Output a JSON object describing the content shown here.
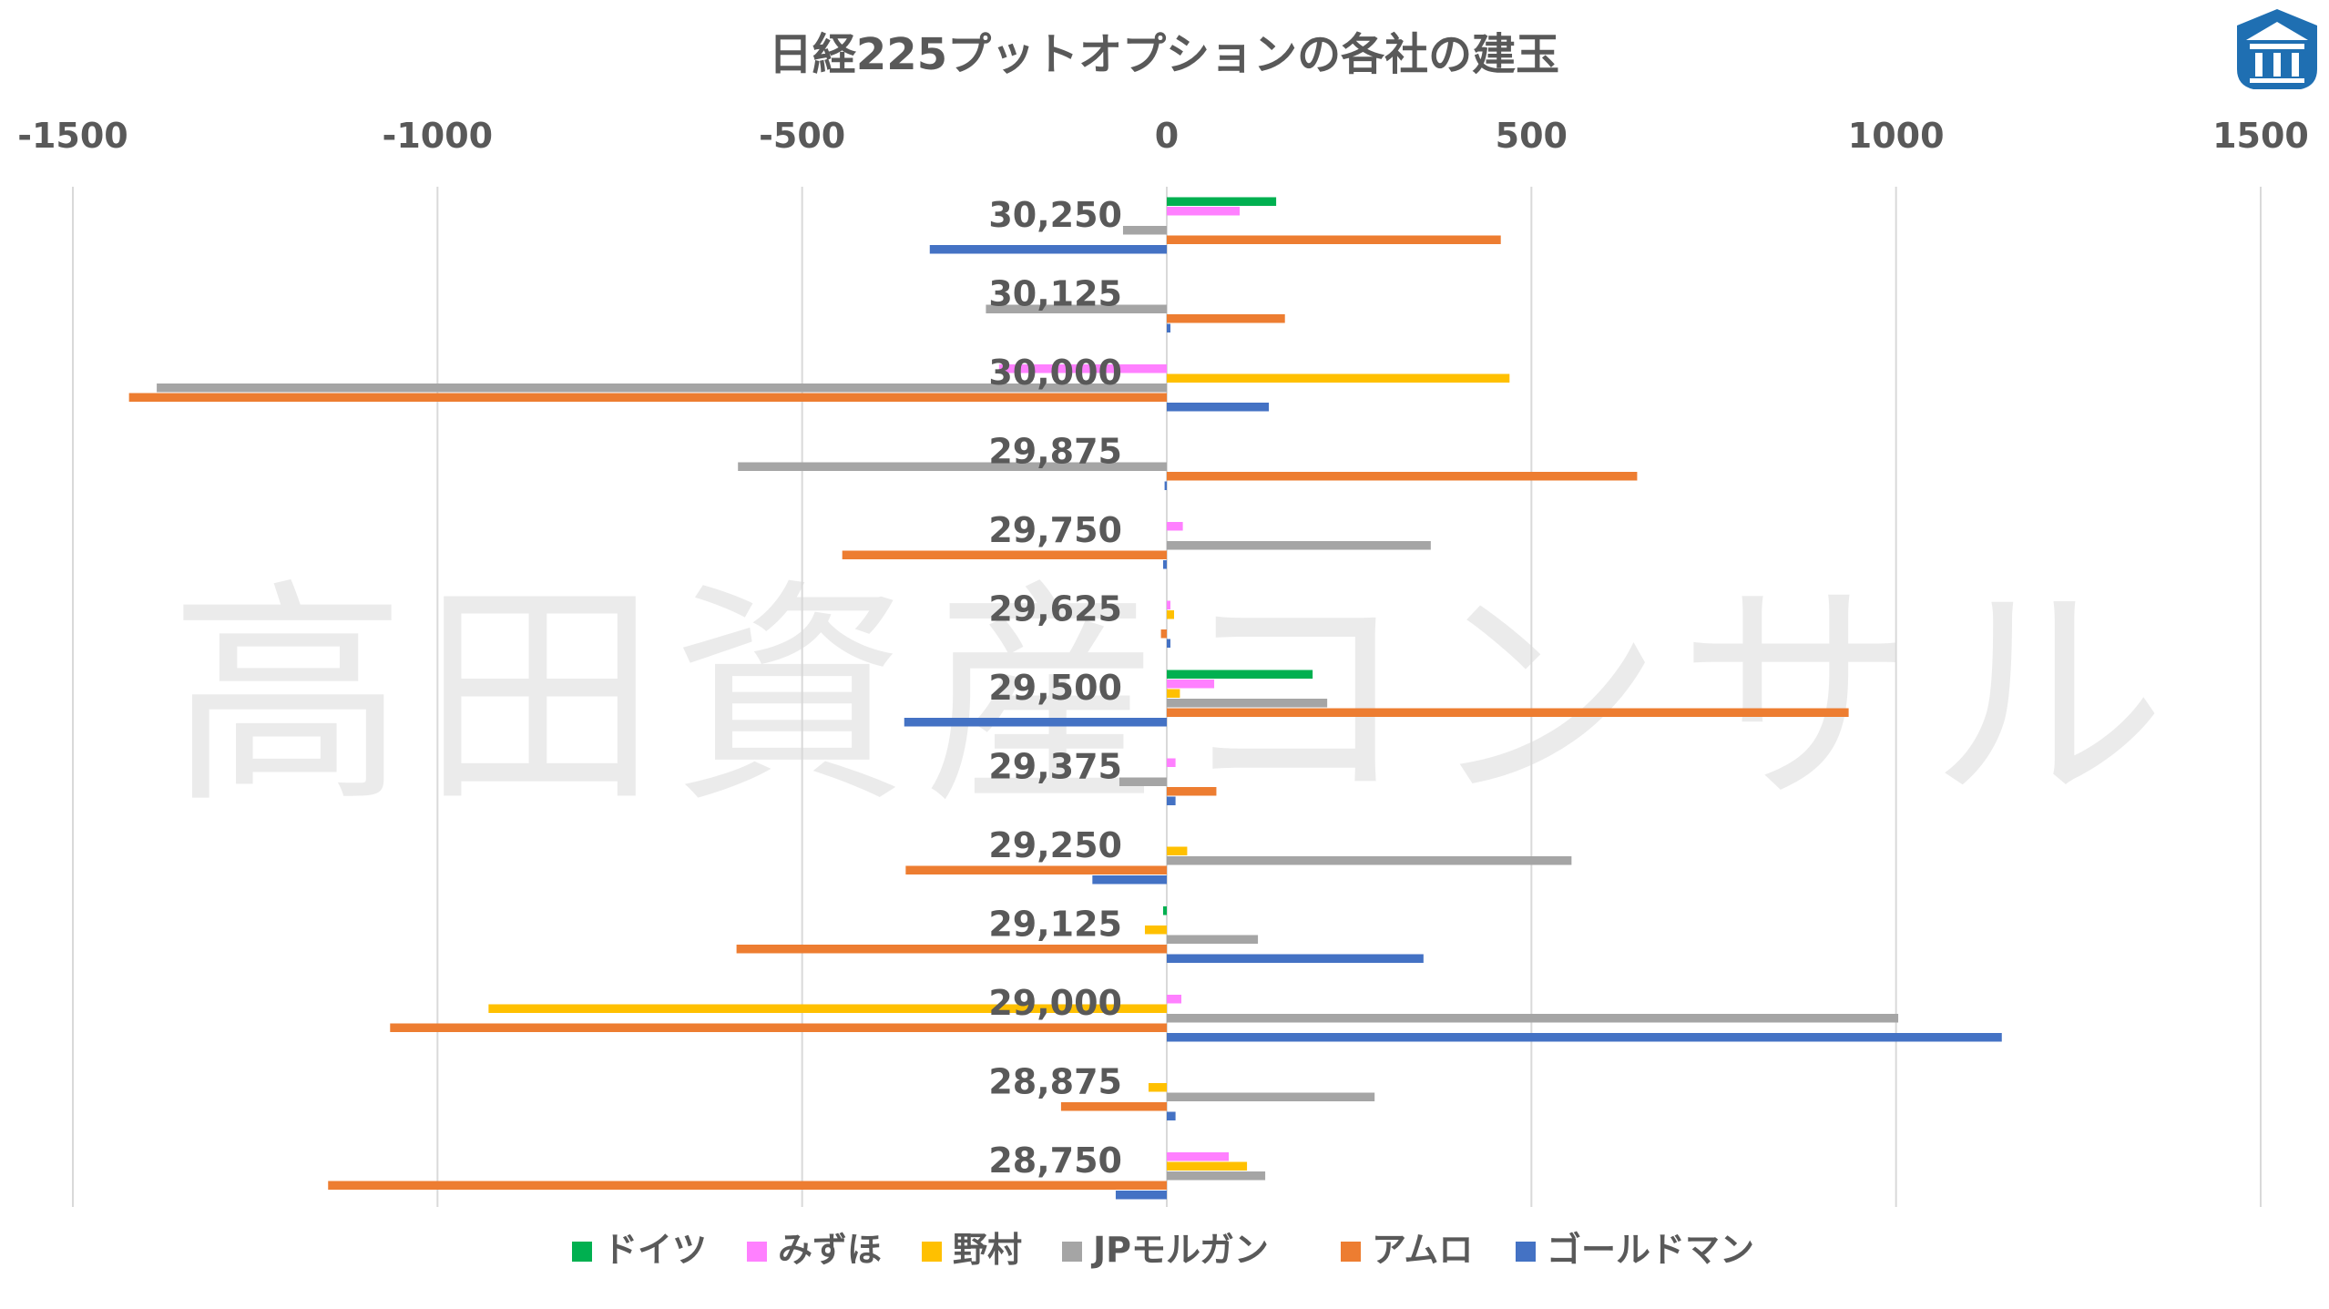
{
  "chart_data": {
    "type": "bar",
    "orientation": "horizontal",
    "title": "日経225プットオプションの各社の建玉",
    "xlim": [
      -1500,
      1500
    ],
    "x_ticks": [
      "-1500",
      "-1000",
      "-500",
      "0",
      "500",
      "1000",
      "1500"
    ],
    "x_tick_values": [
      -1500,
      -1000,
      -500,
      0,
      500,
      1000,
      1500
    ],
    "grid": true,
    "legend_position": "bottom",
    "categories": [
      "30,250",
      "30,125",
      "30,000",
      "29,875",
      "29,750",
      "29,625",
      "29,500",
      "29,375",
      "29,250",
      "29,125",
      "29,000",
      "28,875",
      "28,750"
    ],
    "series": [
      {
        "name": "ドイツ",
        "color": "#00b050",
        "values": [
          150,
          0,
          0,
          0,
          0,
          0,
          200,
          0,
          0,
          -5,
          0,
          0,
          0
        ]
      },
      {
        "name": "みずほ",
        "color": "#ff80ff",
        "values": [
          100,
          0,
          -230,
          0,
          22,
          5,
          65,
          12,
          0,
          0,
          20,
          0,
          85
        ]
      },
      {
        "name": "野村",
        "color": "#ffc000",
        "values": [
          0,
          0,
          470,
          0,
          0,
          10,
          18,
          0,
          28,
          -30,
          -930,
          -25,
          110
        ]
      },
      {
        "name": "JPモルガン",
        "color": "#a5a5a5",
        "values": [
          -60,
          -248,
          -1385,
          -588,
          362,
          0,
          220,
          -65,
          555,
          125,
          1003,
          285,
          135
        ]
      },
      {
        "name": "アムロ",
        "color": "#ed7d31",
        "values": [
          458,
          162,
          -1423,
          645,
          -445,
          -8,
          935,
          68,
          -358,
          -590,
          -1065,
          -145,
          -1150
        ]
      },
      {
        "name": "ゴールドマン",
        "color": "#4472c4",
        "values": [
          -325,
          5,
          140,
          -3,
          -5,
          5,
          -360,
          12,
          -102,
          352,
          1145,
          12,
          -70
        ]
      }
    ]
  },
  "watermark": "高田資産コンサル"
}
